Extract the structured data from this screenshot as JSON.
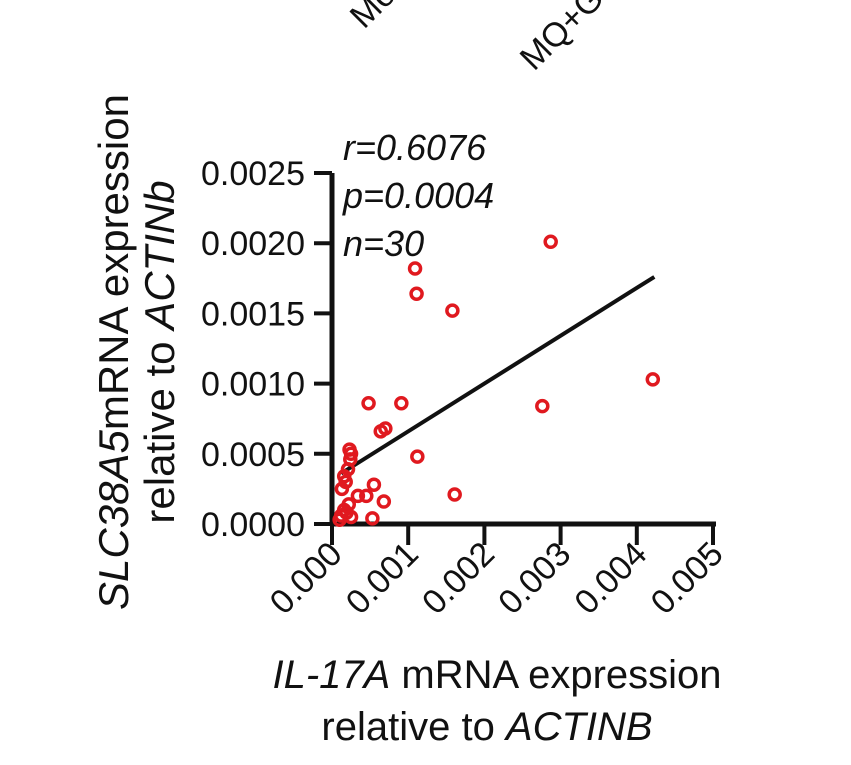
{
  "chart_data": {
    "type": "scatter",
    "top_fragments": [
      "Mo",
      "MQ+G"
    ],
    "stats": {
      "r": "r=0.6076",
      "p": "p=0.0004",
      "n": "n=30"
    },
    "xlabel_gene": "IL-17A",
    "xlabel_rest": " mRNA expression",
    "xlabel_line2_prefix": "relative to ",
    "xlabel_line2_gene": "ACTINB",
    "ylabel_gene": "SLC38A5",
    "ylabel_rest": "mRNA expression",
    "ylabel_line2_prefix": "relative to ",
    "ylabel_line2_gene": "ACTINb",
    "xlim": [
      0,
      0.005
    ],
    "ylim": [
      0,
      0.0025
    ],
    "x_ticks": [
      "0.000",
      "0.001",
      "0.002",
      "0.003",
      "0.004",
      "0.005"
    ],
    "y_ticks": [
      "0.0000",
      "0.0005",
      "0.0010",
      "0.0015",
      "0.0020",
      "0.0025"
    ],
    "points": [
      [
        0.00287,
        0.00201
      ],
      [
        0.00109,
        0.00182
      ],
      [
        0.00111,
        0.00164
      ],
      [
        0.00158,
        0.00152
      ],
      [
        0.00421,
        0.00103
      ],
      [
        0.00276,
        0.00084
      ],
      [
        0.00048,
        0.00086
      ],
      [
        0.00091,
        0.00086
      ],
      [
        0.00064,
        0.00066
      ],
      [
        0.0007,
        0.00068
      ],
      [
        0.00112,
        0.00048
      ],
      [
        0.00023,
        0.00053
      ],
      [
        0.00025,
        0.0005
      ],
      [
        0.00024,
        0.00046
      ],
      [
        0.00021,
        0.00039
      ],
      [
        0.00016,
        0.00034
      ],
      [
        0.00018,
        0.0003
      ],
      [
        0.00055,
        0.00028
      ],
      [
        0.00013,
        0.00025
      ],
      [
        0.00034,
        0.0002
      ],
      [
        0.00045,
        0.0002
      ],
      [
        0.00161,
        0.00021
      ],
      [
        0.00068,
        0.00016
      ],
      [
        0.00022,
        0.00014
      ],
      [
        0.00016,
        0.0001
      ],
      [
        0.00019,
        8e-05
      ],
      [
        0.00012,
        6e-05
      ],
      [
        0.00025,
        5e-05
      ],
      [
        0.00053,
        4e-05
      ],
      [
        0.0001,
        3e-05
      ]
    ],
    "regression": {
      "x": [
        0.00012,
        0.00423
      ],
      "y": [
        0.00036,
        0.00176
      ]
    },
    "point_color": "#e0191f",
    "line_color": "#111111"
  }
}
